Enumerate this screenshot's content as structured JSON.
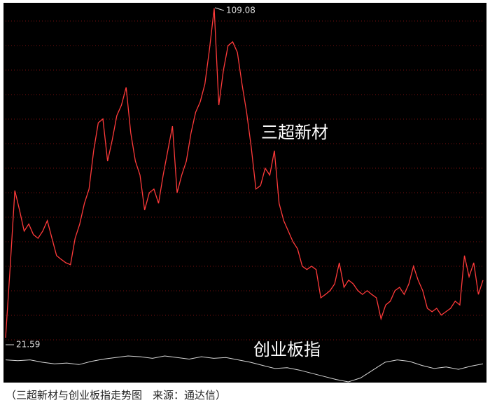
{
  "chart_data": {
    "type": "line",
    "caption": "（三超新材与创业板指走势图　来源：通达信）",
    "series": [
      {
        "name": "三超新材",
        "color": "#ff3a3a",
        "values": [
          21.59,
          40.6,
          60.7,
          55.5,
          49.9,
          51.8,
          49.0,
          48.0,
          49.9,
          52.7,
          48.0,
          43.4,
          42.4,
          41.5,
          41.0,
          48.0,
          51.8,
          57.3,
          61.1,
          71.3,
          78.7,
          79.7,
          68.5,
          74.1,
          80.6,
          83.4,
          88.1,
          76.0,
          68.5,
          64.8,
          55.5,
          60.1,
          61.1,
          57.3,
          64.8,
          71.3,
          77.8,
          60.1,
          64.8,
          68.5,
          76.0,
          81.5,
          84.3,
          89.0,
          98.3,
          109.08,
          83.4,
          92.7,
          99.2,
          100.2,
          97.4,
          89.0,
          81.5,
          72.2,
          61.1,
          62.0,
          66.6,
          64.8,
          71.3,
          57.3,
          52.7,
          49.9,
          47.1,
          45.2,
          40.6,
          39.7,
          40.6,
          39.7,
          32.2,
          33.1,
          34.1,
          35.9,
          41.5,
          35.0,
          36.9,
          35.9,
          34.1,
          33.1,
          34.1,
          33.1,
          32.2,
          26.6,
          30.3,
          31.3,
          34.1,
          35.0,
          33.1,
          35.9,
          40.6,
          36.9,
          34.1,
          29.4,
          28.5,
          29.4,
          27.6,
          28.5,
          29.4,
          31.3,
          30.3,
          43.4,
          37.8,
          41.5,
          33.1,
          36.9
        ]
      },
      {
        "name": "创业板指",
        "color": "#d8d8d8",
        "values": [
          35,
          34,
          35,
          32,
          30,
          31,
          29,
          33,
          36,
          38,
          40,
          39,
          37,
          40,
          38,
          36,
          39,
          37,
          38,
          35,
          32,
          28,
          24,
          25,
          22,
          18,
          14,
          10,
          7,
          12,
          22,
          32,
          35,
          33,
          28,
          24,
          26,
          23,
          27,
          30
        ]
      }
    ]
  }
}
